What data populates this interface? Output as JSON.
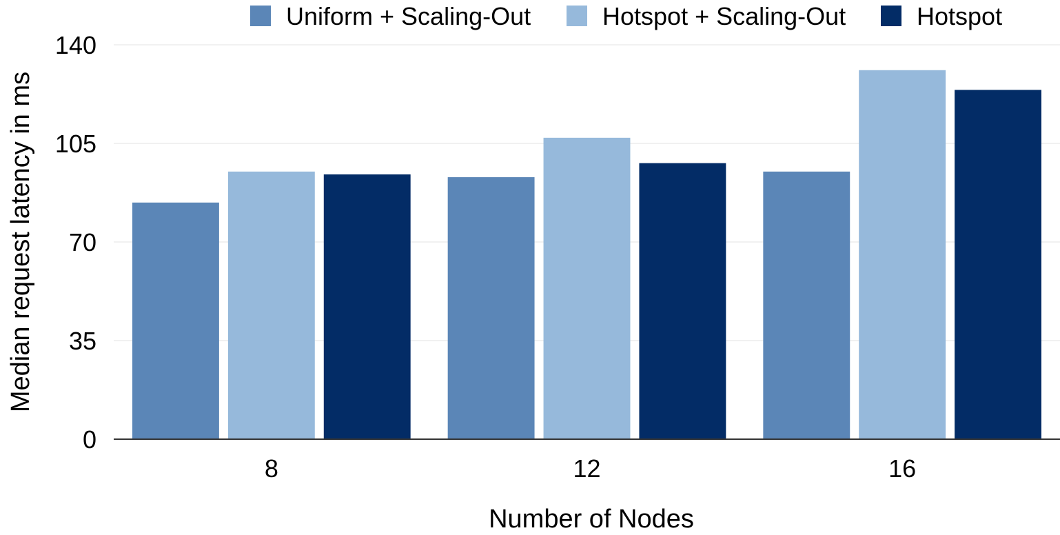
{
  "chart_data": {
    "type": "bar",
    "title": "",
    "xlabel": "Number of Nodes",
    "ylabel": "Median request latency in ms",
    "categories": [
      "8",
      "12",
      "16"
    ],
    "ylim": [
      0,
      140
    ],
    "yticks": [
      0,
      35,
      70,
      105,
      140
    ],
    "grid": true,
    "legend_position": "top",
    "series": [
      {
        "name": "Uniform + Scaling-Out",
        "color": "#5b86b7",
        "values": [
          84,
          93,
          95
        ]
      },
      {
        "name": "Hotspot + Scaling-Out",
        "color": "#96b9db",
        "values": [
          95,
          107,
          131
        ]
      },
      {
        "name": "Hotspot",
        "color": "#032c66",
        "values": [
          94,
          98,
          124
        ]
      }
    ]
  }
}
